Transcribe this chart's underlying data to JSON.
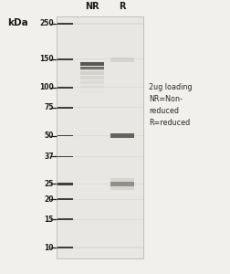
{
  "fig_width": 2.53,
  "fig_height": 3.0,
  "dpi": 100,
  "bg_color": "#f2f0ed",
  "gel_bg": "#e8e6e2",
  "gel_inner_bg": "#edeae6",
  "kda_label": "kDa",
  "ladder_labels": [
    "250",
    "150",
    "100",
    "75",
    "50",
    "37",
    "25",
    "20",
    "15",
    "10"
  ],
  "ladder_kda": [
    250,
    150,
    100,
    75,
    50,
    37,
    25,
    20,
    15,
    10
  ],
  "col_labels": [
    "NR",
    "R"
  ],
  "annotation": "2ug loading\nNR=Non-\nreduced\nR=reduced",
  "nr_band_kda": 140,
  "r_band_hc_kda": 50,
  "r_band_lc_kda": 25,
  "r_faint_kda": 150
}
